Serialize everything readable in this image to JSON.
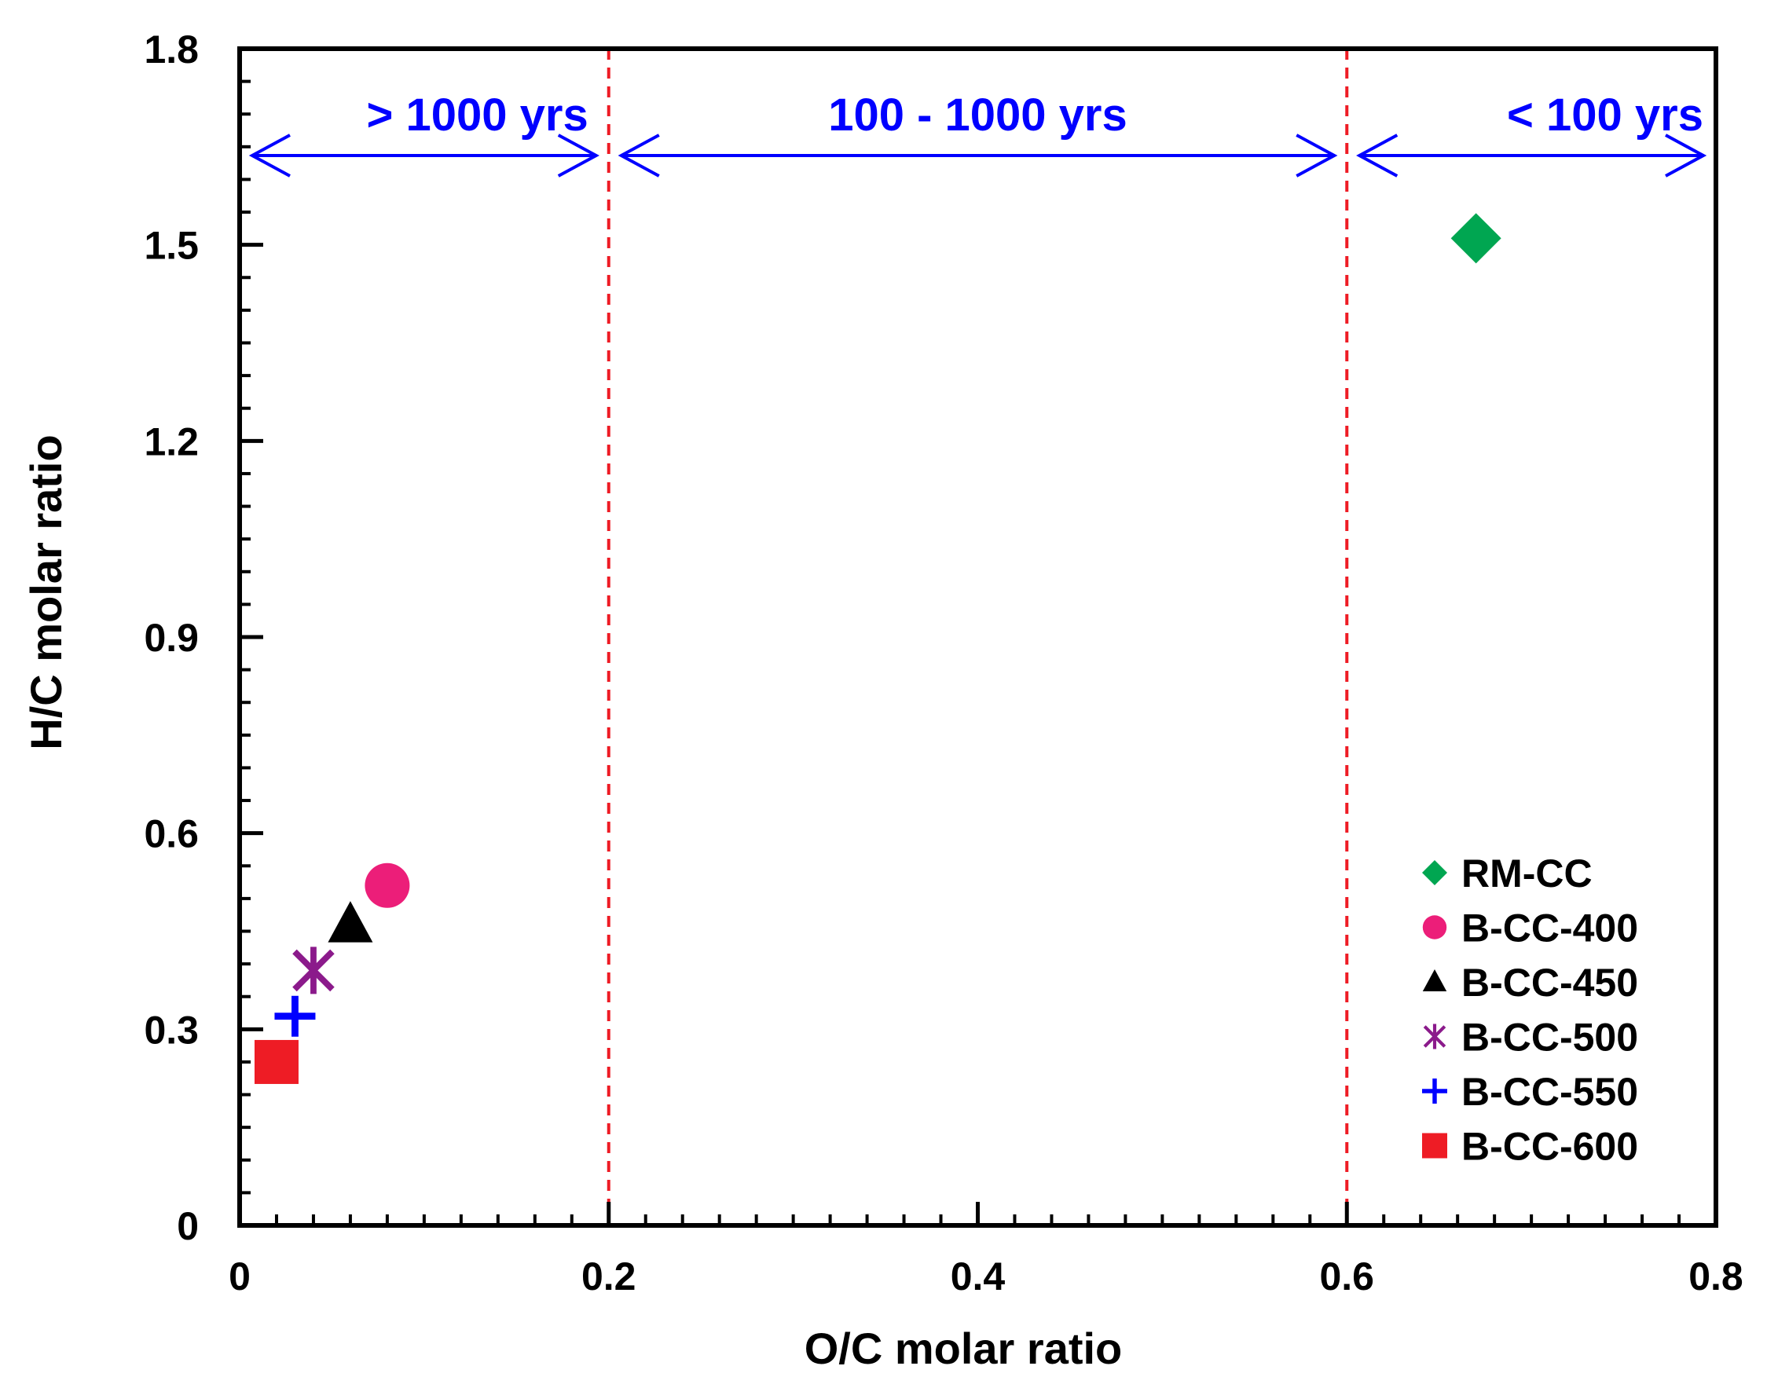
{
  "chart_data": {
    "type": "scatter",
    "xlabel": "O/C molar ratio",
    "ylabel": "H/C molar ratio",
    "xlim": [
      0,
      0.8
    ],
    "ylim": [
      0,
      1.8
    ],
    "x_ticks": [
      0,
      0.2,
      0.4,
      0.6,
      0.8
    ],
    "x_tick_labels": [
      "0",
      "0.2",
      "0.4",
      "0.6",
      "0.8"
    ],
    "y_ticks": [
      0,
      0.3,
      0.6,
      0.9,
      1.2,
      1.5,
      1.8
    ],
    "y_tick_labels": [
      "0",
      "0.3",
      "0.6",
      "0.9",
      "1.2",
      "1.5",
      "1.8"
    ],
    "grid": false,
    "legend_placement": "bottom-right",
    "reference_lines": [
      {
        "axis": "x",
        "value": 0.2,
        "style": "dashed",
        "color": "#ee1c25"
      },
      {
        "axis": "x",
        "value": 0.6,
        "style": "dashed",
        "color": "#ee1c25"
      }
    ],
    "regions": [
      {
        "label": "> 1000 yrs",
        "x_start": 0,
        "x_end": 0.2,
        "color": "#0000ff"
      },
      {
        "label": "100 - 1000 yrs",
        "x_start": 0.2,
        "x_end": 0.6,
        "color": "#0000ff"
      },
      {
        "label": "< 100 yrs",
        "x_start": 0.6,
        "x_end": 0.8,
        "color": "#0000ff"
      }
    ],
    "series": [
      {
        "name": "RM-CC",
        "marker": "diamond",
        "color": "#00a651",
        "x": [
          0.67
        ],
        "y": [
          1.51
        ]
      },
      {
        "name": "B-CC-400",
        "marker": "circle",
        "color": "#ec1e79",
        "x": [
          0.08
        ],
        "y": [
          0.52
        ]
      },
      {
        "name": "B-CC-450",
        "marker": "triangle",
        "color": "#000000",
        "x": [
          0.06
        ],
        "y": [
          0.46
        ]
      },
      {
        "name": "B-CC-500",
        "marker": "asterisk",
        "color": "#8b1a8b",
        "x": [
          0.04
        ],
        "y": [
          0.39
        ]
      },
      {
        "name": "B-CC-550",
        "marker": "plus",
        "color": "#0000ff",
        "x": [
          0.03
        ],
        "y": [
          0.32
        ]
      },
      {
        "name": "B-CC-600",
        "marker": "square",
        "color": "#ee1c25",
        "x": [
          0.02
        ],
        "y": [
          0.25
        ]
      }
    ]
  }
}
